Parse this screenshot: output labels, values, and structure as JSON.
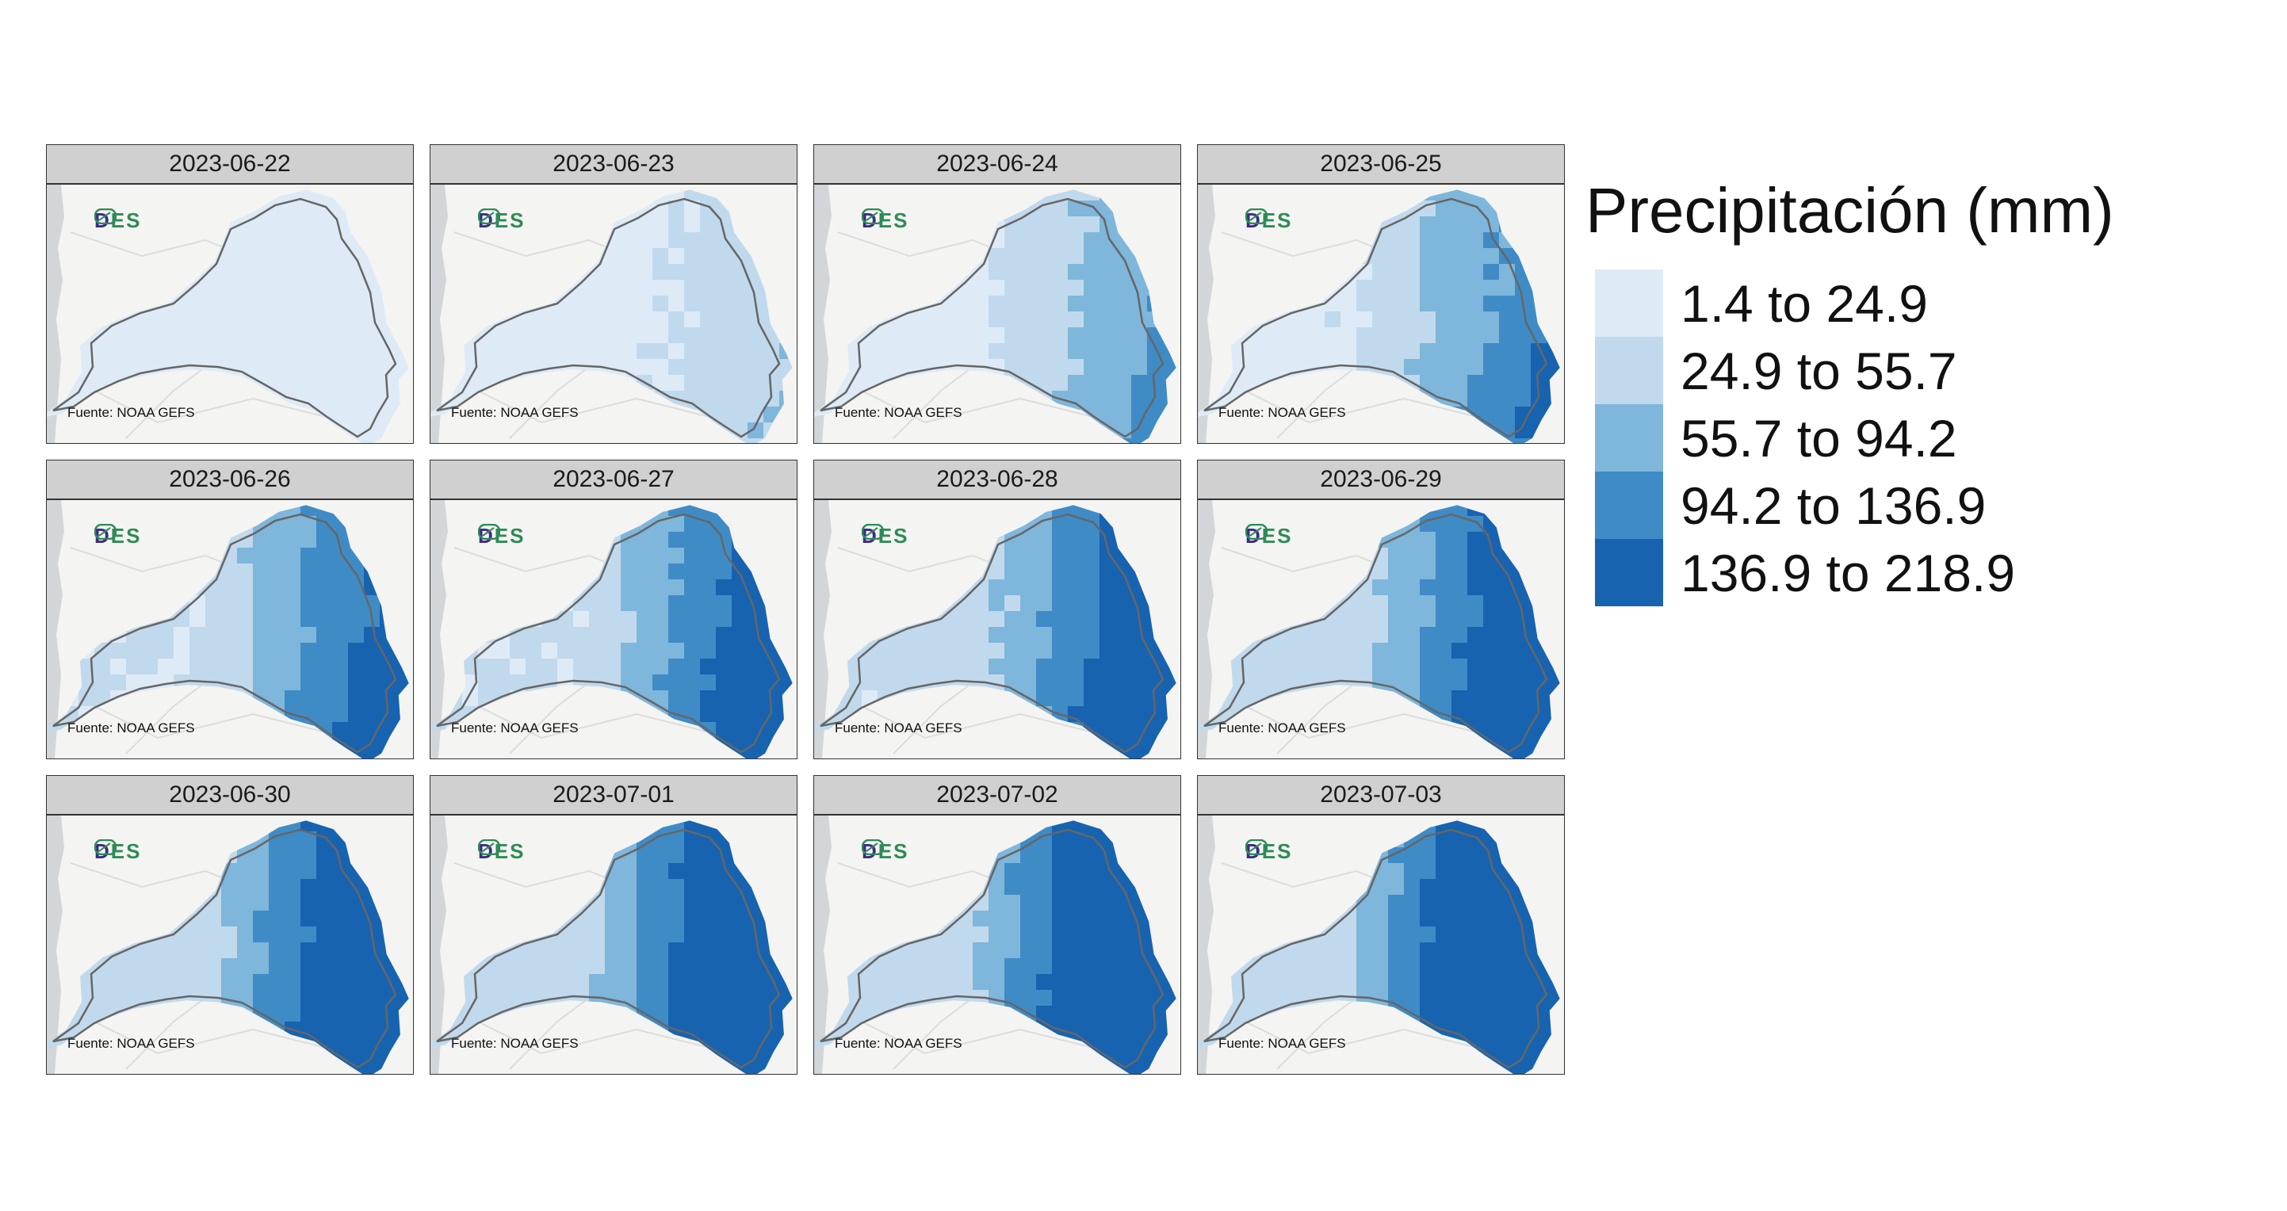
{
  "legend": {
    "title": "Precipitación (mm)",
    "classes": [
      {
        "label": "1.4 to 24.9",
        "color": "#deebf7"
      },
      {
        "label": "24.9 to 55.7",
        "color": "#c1d9ed"
      },
      {
        "label": "55.7 to 94.2",
        "color": "#7fb6db"
      },
      {
        "label": "94.2 to 136.9",
        "color": "#3f8bc6"
      },
      {
        "label": "136.9 to 218.9",
        "color": "#1763b0"
      }
    ]
  },
  "source_label": "Fuente: NOAA GEFS",
  "logo_text": "DES",
  "logo_parts": [
    "D",
    "ES"
  ],
  "panels": [
    {
      "date": "2023-06-22",
      "intensity": 0.08
    },
    {
      "date": "2023-06-23",
      "intensity": 0.22
    },
    {
      "date": "2023-06-24",
      "intensity": 0.38
    },
    {
      "date": "2023-06-25",
      "intensity": 0.48
    },
    {
      "date": "2023-06-26",
      "intensity": 0.58
    },
    {
      "date": "2023-06-27",
      "intensity": 0.64
    },
    {
      "date": "2023-06-28",
      "intensity": 0.68
    },
    {
      "date": "2023-06-29",
      "intensity": 0.72
    },
    {
      "date": "2023-06-30",
      "intensity": 0.78
    },
    {
      "date": "2023-07-01",
      "intensity": 0.84
    },
    {
      "date": "2023-07-02",
      "intensity": 0.9
    },
    {
      "date": "2023-07-03",
      "intensity": 0.96
    }
  ]
}
